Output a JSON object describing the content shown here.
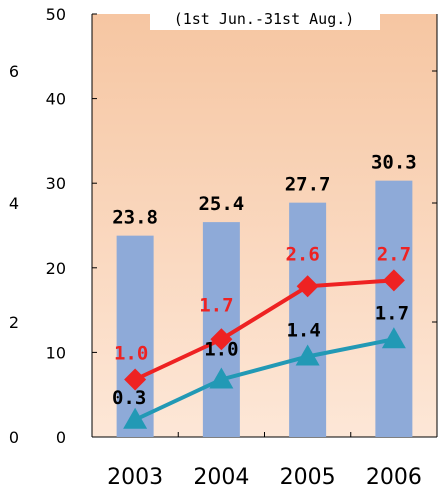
{
  "chart_data": {
    "type": "bar",
    "subtitle": "(1st Jun.-31st Aug.)",
    "categories": [
      "2003",
      "2004",
      "2005",
      "2006"
    ],
    "ylim": [
      0,
      50
    ],
    "yticks": [
      "0",
      "10",
      "20",
      "30",
      "40",
      "50"
    ],
    "y2lim": [
      0,
      8
    ],
    "y2ticks": [
      "0",
      "2",
      "4",
      "6"
    ],
    "series": [
      {
        "type": "bar",
        "axis": "left",
        "values": [
          23.8,
          25.4,
          27.7,
          30.3
        ],
        "labels": [
          "23.8",
          "25.4",
          "27.7",
          "30.3"
        ],
        "color": "#8eaad8"
      },
      {
        "type": "line",
        "axis": "right",
        "marker": "diamond",
        "values": [
          1.0,
          1.7,
          2.6,
          2.7
        ],
        "labels": [
          "1.0",
          "1.7",
          "2.6",
          "2.7"
        ],
        "color": "#ee2222"
      },
      {
        "type": "line",
        "axis": "right",
        "marker": "triangle",
        "values": [
          0.3,
          1.0,
          1.4,
          1.7
        ],
        "labels": [
          "0.3",
          "1.0",
          "1.4",
          "1.7"
        ],
        "color": "#2299b5"
      }
    ],
    "background_gradient": [
      "#f6c6a2",
      "#fde7d7"
    ],
    "grid": false
  }
}
